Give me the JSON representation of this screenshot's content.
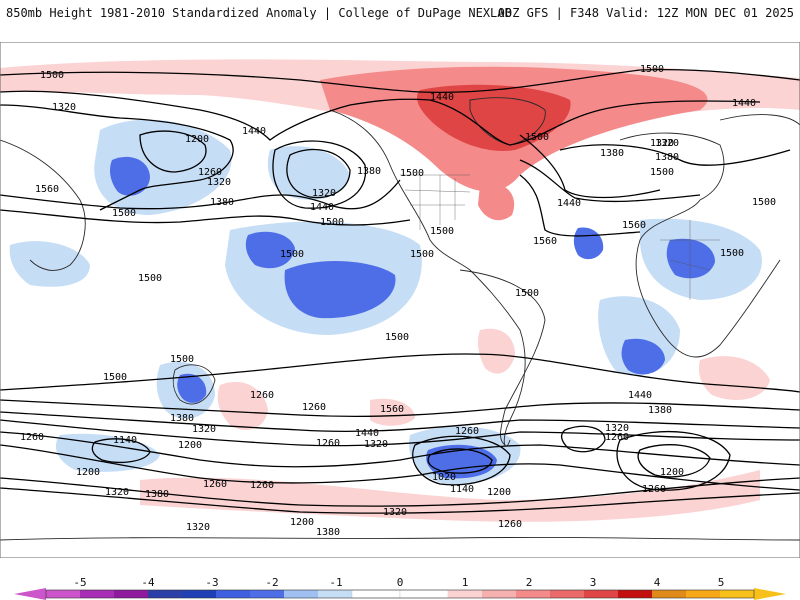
{
  "header": {
    "title_left": "850mb Height 1981-2010 Standardized Anomaly | College of DuPage NEXLAB",
    "title_right": "00Z GFS | F348 Valid: 12Z MON DEC 01 2025"
  },
  "colors": {
    "neg5": "#cc55cc",
    "neg4": "#8e1b9e",
    "neg3": "#1f3fb5",
    "neg2": "#4e6ee8",
    "neg1": "#c6ddf6",
    "zero": "#ffffff",
    "pos1": "#fbd3d3",
    "pos2": "#f48a8a",
    "pos3": "#e04545",
    "pos4": "#c40f0f",
    "pos5": "#f7a81a",
    "contour": "#000000",
    "coast": "#2a2a2a"
  },
  "colorbar": {
    "ticks": [
      "-5",
      "-4",
      "-3",
      "-2",
      "-1",
      "0",
      "1",
      "2",
      "3",
      "4",
      "5"
    ]
  },
  "contour_labels": [
    {
      "id": "l1",
      "text": "1500"
    },
    {
      "id": "l2",
      "text": "1320"
    },
    {
      "id": "l3",
      "text": "1500"
    },
    {
      "id": "l4",
      "text": "1440"
    },
    {
      "id": "l5",
      "text": "1440"
    },
    {
      "id": "l6",
      "text": "1500"
    },
    {
      "id": "l7",
      "text": "1320"
    },
    {
      "id": "l8",
      "text": "1200"
    },
    {
      "id": "l9",
      "text": "1260"
    },
    {
      "id": "l10",
      "text": "1320"
    },
    {
      "id": "l11",
      "text": "1380"
    },
    {
      "id": "l12",
      "text": "1440"
    },
    {
      "id": "l13",
      "text": "1500"
    },
    {
      "id": "l14",
      "text": "1560"
    },
    {
      "id": "l15",
      "text": "1320"
    },
    {
      "id": "l16",
      "text": "1380"
    },
    {
      "id": "l17",
      "text": "1440"
    },
    {
      "id": "l18",
      "text": "1500"
    },
    {
      "id": "l19",
      "text": "1500"
    },
    {
      "id": "l20",
      "text": "1500"
    },
    {
      "id": "l21",
      "text": "1560"
    },
    {
      "id": "l22",
      "text": "1380"
    },
    {
      "id": "l23",
      "text": "1320"
    },
    {
      "id": "l24",
      "text": "1380"
    },
    {
      "id": "l25",
      "text": "1440"
    },
    {
      "id": "l26",
      "text": "1500"
    },
    {
      "id": "l27",
      "text": "1560"
    },
    {
      "id": "l28",
      "text": "1500"
    },
    {
      "id": "l29",
      "text": "1500"
    },
    {
      "id": "l30",
      "text": "1500"
    },
    {
      "id": "l31",
      "text": "1500"
    },
    {
      "id": "l32",
      "text": "1500"
    },
    {
      "id": "l33",
      "text": "1500"
    },
    {
      "id": "l34",
      "text": "1500"
    },
    {
      "id": "l35",
      "text": "1500"
    },
    {
      "id": "l36",
      "text": "1500"
    },
    {
      "id": "l37",
      "text": "1440"
    },
    {
      "id": "l38",
      "text": "1380"
    },
    {
      "id": "l39",
      "text": "1320"
    },
    {
      "id": "l40",
      "text": "1260"
    },
    {
      "id": "l41",
      "text": "1200"
    },
    {
      "id": "l42",
      "text": "1140"
    },
    {
      "id": "l43",
      "text": "1260"
    },
    {
      "id": "l44",
      "text": "1200"
    },
    {
      "id": "l45",
      "text": "1320"
    },
    {
      "id": "l46",
      "text": "1380"
    },
    {
      "id": "l47",
      "text": "1260"
    },
    {
      "id": "l48",
      "text": "1380"
    },
    {
      "id": "l49",
      "text": "1200"
    },
    {
      "id": "l50",
      "text": "1320"
    },
    {
      "id": "l51",
      "text": "1260"
    },
    {
      "id": "l52",
      "text": "1440"
    },
    {
      "id": "l53",
      "text": "1320"
    },
    {
      "id": "l54",
      "text": "1560"
    },
    {
      "id": "l55",
      "text": "1260"
    },
    {
      "id": "l56",
      "text": "1020"
    },
    {
      "id": "l57",
      "text": "1140"
    },
    {
      "id": "l58",
      "text": "1200"
    },
    {
      "id": "l59",
      "text": "1260"
    },
    {
      "id": "l60",
      "text": "1260"
    },
    {
      "id": "l61",
      "text": "1320"
    },
    {
      "id": "l62",
      "text": "1380"
    },
    {
      "id": "l63",
      "text": "1320"
    },
    {
      "id": "l64",
      "text": "1260"
    },
    {
      "id": "l65",
      "text": "1200"
    },
    {
      "id": "l66",
      "text": "1260"
    },
    {
      "id": "l67",
      "text": "1260"
    }
  ]
}
